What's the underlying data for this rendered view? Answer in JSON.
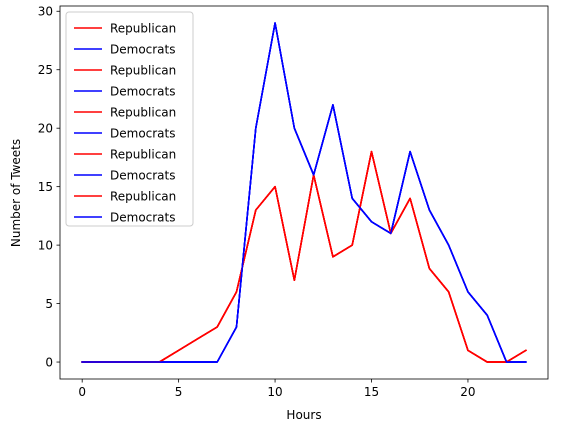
{
  "chart_data": {
    "type": "line",
    "xlabel": "Hours",
    "ylabel": "Number of Tweets",
    "xlim": [
      -1.15,
      24.15
    ],
    "ylim": [
      -1.45,
      30.45
    ],
    "xticks": [
      0,
      5,
      10,
      15,
      20
    ],
    "yticks": [
      0,
      5,
      10,
      15,
      20,
      25,
      30
    ],
    "grid": false,
    "legend_position": "upper-left",
    "x": [
      0,
      1,
      2,
      3,
      4,
      5,
      6,
      7,
      8,
      9,
      10,
      11,
      12,
      13,
      14,
      15,
      16,
      17,
      18,
      19,
      20,
      21,
      22,
      23
    ],
    "series": [
      {
        "name": "Republican",
        "color": "#ff0000",
        "values": [
          0,
          0,
          0,
          0,
          0,
          1,
          2,
          3,
          6,
          13,
          15,
          7,
          16,
          9,
          10,
          18,
          11,
          14,
          8,
          6,
          1,
          0,
          0,
          1
        ]
      },
      {
        "name": "Democrats",
        "color": "#0000ff",
        "values": [
          0,
          0,
          0,
          0,
          0,
          0,
          0,
          0,
          3,
          20,
          29,
          20,
          16,
          22,
          14,
          12,
          11,
          18,
          13,
          10,
          6,
          4,
          0,
          0
        ]
      },
      {
        "name": "Republican",
        "color": "#ff0000",
        "values": [
          0,
          0,
          0,
          0,
          0,
          1,
          2,
          3,
          6,
          13,
          15,
          7,
          16,
          9,
          10,
          18,
          11,
          14,
          8,
          6,
          1,
          0,
          0,
          1
        ]
      },
      {
        "name": "Democrats",
        "color": "#0000ff",
        "values": [
          0,
          0,
          0,
          0,
          0,
          0,
          0,
          0,
          3,
          20,
          29,
          20,
          16,
          22,
          14,
          12,
          11,
          18,
          13,
          10,
          6,
          4,
          0,
          0
        ]
      },
      {
        "name": "Republican",
        "color": "#ff0000",
        "values": [
          0,
          0,
          0,
          0,
          0,
          1,
          2,
          3,
          6,
          13,
          15,
          7,
          16,
          9,
          10,
          18,
          11,
          14,
          8,
          6,
          1,
          0,
          0,
          1
        ]
      },
      {
        "name": "Democrats",
        "color": "#0000ff",
        "values": [
          0,
          0,
          0,
          0,
          0,
          0,
          0,
          0,
          3,
          20,
          29,
          20,
          16,
          22,
          14,
          12,
          11,
          18,
          13,
          10,
          6,
          4,
          0,
          0
        ]
      },
      {
        "name": "Republican",
        "color": "#ff0000",
        "values": [
          0,
          0,
          0,
          0,
          0,
          1,
          2,
          3,
          6,
          13,
          15,
          7,
          16,
          9,
          10,
          18,
          11,
          14,
          8,
          6,
          1,
          0,
          0,
          1
        ]
      },
      {
        "name": "Democrats",
        "color": "#0000ff",
        "values": [
          0,
          0,
          0,
          0,
          0,
          0,
          0,
          0,
          3,
          20,
          29,
          20,
          16,
          22,
          14,
          12,
          11,
          18,
          13,
          10,
          6,
          4,
          0,
          0
        ]
      },
      {
        "name": "Republican",
        "color": "#ff0000",
        "values": [
          0,
          0,
          0,
          0,
          0,
          1,
          2,
          3,
          6,
          13,
          15,
          7,
          16,
          9,
          10,
          18,
          11,
          14,
          8,
          6,
          1,
          0,
          0,
          1
        ]
      },
      {
        "name": "Democrats",
        "color": "#0000ff",
        "values": [
          0,
          0,
          0,
          0,
          0,
          0,
          0,
          0,
          3,
          20,
          29,
          20,
          16,
          22,
          14,
          12,
          11,
          18,
          13,
          10,
          6,
          4,
          0,
          0
        ]
      }
    ]
  }
}
